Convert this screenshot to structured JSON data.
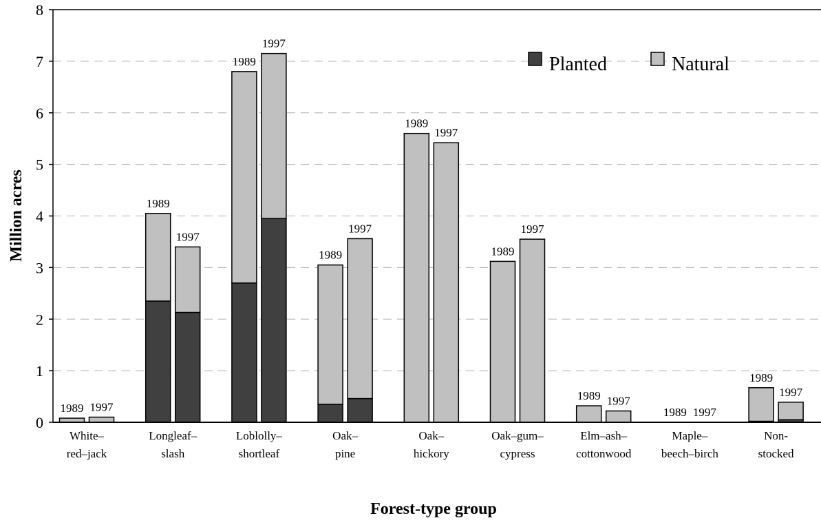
{
  "chart_data": {
    "type": "bar",
    "stacked": true,
    "title": "",
    "xlabel": "Forest-type group",
    "ylabel": "Million acres",
    "ylim": [
      0,
      8
    ],
    "yticks": [
      "0",
      "1",
      "2",
      "3",
      "4",
      "5",
      "6",
      "7",
      "8"
    ],
    "grid": true,
    "legend_position": "top-right",
    "categories": [
      [
        "White–",
        "red–jack"
      ],
      [
        "Longleaf–",
        "slash"
      ],
      [
        "Loblolly–",
        "shortleaf"
      ],
      [
        "Oak–",
        "pine"
      ],
      [
        "Oak–",
        "hickory"
      ],
      [
        "Oak–gum–",
        "cypress"
      ],
      [
        "Elm–ash–",
        "cottonwood"
      ],
      [
        "Maple–",
        "beech–birch"
      ],
      [
        "Non-",
        "stocked"
      ]
    ],
    "years": [
      "1989",
      "1997"
    ],
    "series": [
      {
        "name": "Planted",
        "color": "#404040",
        "values_1989": [
          0,
          2.35,
          2.7,
          0.35,
          0,
          0,
          0,
          0,
          0.02
        ],
        "values_1997": [
          0,
          2.13,
          3.95,
          0.46,
          0,
          0,
          0,
          0,
          0.05
        ]
      },
      {
        "name": "Natural",
        "color": "#c0c0c0",
        "values_1989": [
          0.08,
          1.7,
          4.1,
          2.7,
          5.6,
          3.12,
          0.32,
          0,
          0.65
        ],
        "values_1997": [
          0.1,
          1.27,
          3.2,
          3.1,
          5.42,
          3.55,
          0.22,
          0,
          0.34
        ]
      }
    ]
  }
}
